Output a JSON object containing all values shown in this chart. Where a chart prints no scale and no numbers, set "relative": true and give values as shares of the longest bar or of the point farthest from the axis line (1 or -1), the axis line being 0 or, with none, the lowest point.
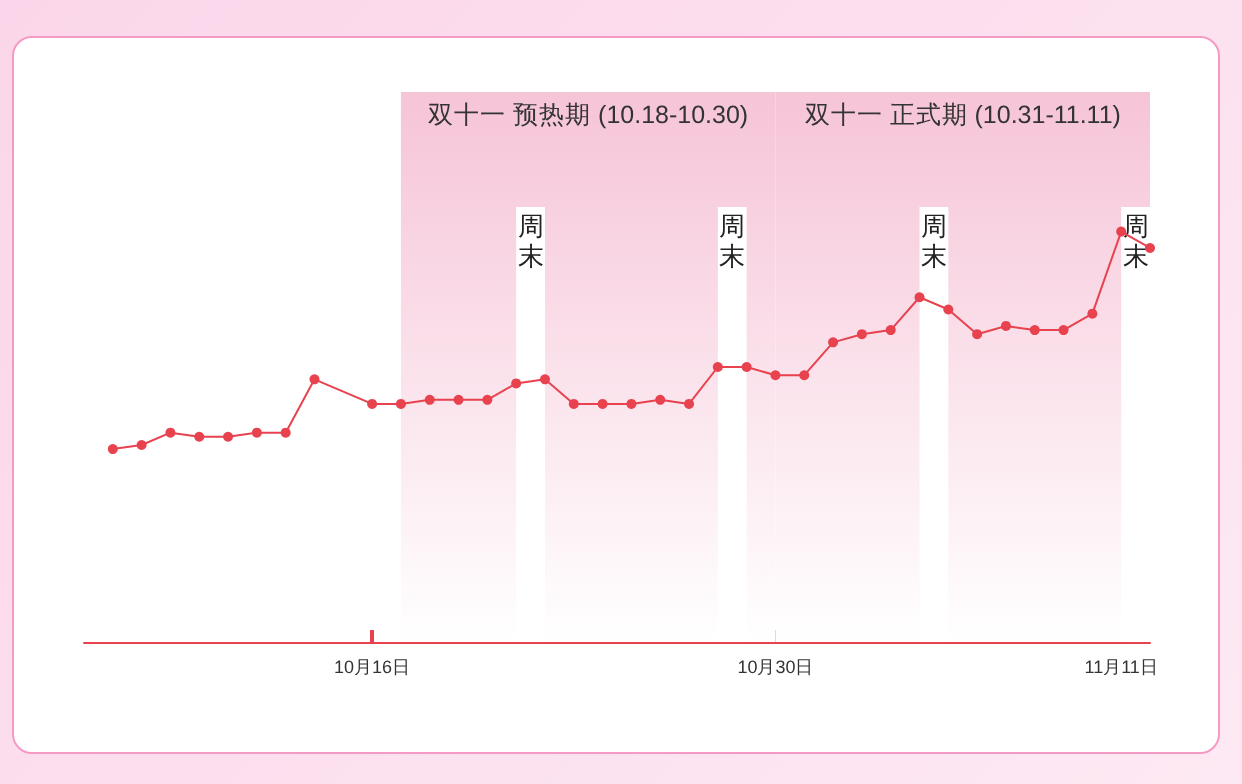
{
  "chart_data": {
    "type": "line",
    "relative": true,
    "marker": "circle",
    "color": "#e8424f",
    "x": [
      "--10-07",
      "--10-08",
      "--10-09",
      "--10-10",
      "--10-11",
      "--10-12",
      "--10-13",
      "--10-14",
      "--10-16",
      "--10-17",
      "--10-18",
      "--10-19",
      "--10-20",
      "--10-21",
      "--10-22",
      "--10-23",
      "--10-24",
      "--10-25",
      "--10-26",
      "--10-27",
      "--10-28",
      "--10-29",
      "--10-30",
      "--10-31",
      "--11-01",
      "--11-02",
      "--11-03",
      "--11-04",
      "--11-05",
      "--11-06",
      "--11-07",
      "--11-08",
      "--11-09",
      "--11-10",
      "--11-11",
      "--11-12"
    ],
    "values": [
      0.47,
      0.48,
      0.51,
      0.5,
      0.5,
      0.51,
      0.51,
      0.64,
      0.58,
      0.58,
      0.59,
      0.59,
      0.59,
      0.63,
      0.64,
      0.58,
      0.58,
      0.58,
      0.59,
      0.58,
      0.67,
      0.67,
      0.65,
      0.65,
      0.73,
      0.75,
      0.76,
      0.84,
      0.81,
      0.75,
      0.77,
      0.76,
      0.76,
      0.8,
      1,
      0.96
    ],
    "xlim": [
      "--10-06",
      "--11-12"
    ],
    "xticks": [
      {
        "value": "--10-16",
        "label": "10月16日"
      },
      {
        "value": "--10-30",
        "label": "10月30日"
      },
      {
        "value": "--11-11",
        "label": "11月11日"
      }
    ],
    "bands": [
      {
        "axis": "x",
        "from": "--10-17",
        "to": "--10-30",
        "label": "双十一 预热期 (10.18-10.30)",
        "color": "#f6c4d7"
      },
      {
        "axis": "x",
        "from": "--10-30",
        "to": "--11-12",
        "label": "双十一 正式期 (10.31-11.11)",
        "color": "#f6c4d7"
      },
      {
        "axis": "x",
        "from": "--10-21",
        "to": "--10-22",
        "label": "周末",
        "color": "#ffffff"
      },
      {
        "axis": "x",
        "from": "--10-28",
        "to": "--10-29",
        "label": "周末",
        "color": "#ffffff"
      },
      {
        "axis": "x",
        "from": "--11-04",
        "to": "--11-05",
        "label": "周末",
        "color": "#ffffff"
      },
      {
        "axis": "x",
        "from": "--11-11",
        "to": "--11-12",
        "label": "周末",
        "color": "#ffffff"
      }
    ]
  }
}
